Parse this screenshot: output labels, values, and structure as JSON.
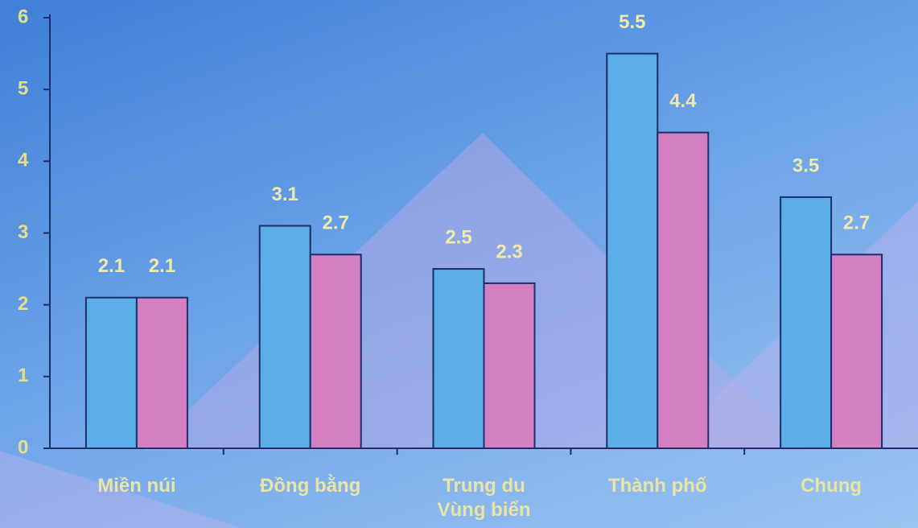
{
  "chart_data": {
    "type": "bar",
    "categories": [
      "Miền núi",
      "Đồng bằng",
      "Trung du\nVùng biển",
      "Thành phố",
      "Chung"
    ],
    "series": [
      {
        "color": "#5aade6",
        "values": [
          2.1,
          3.1,
          2.5,
          5.5,
          3.5
        ]
      },
      {
        "color": "#d37fc2",
        "values": [
          2.1,
          2.7,
          2.3,
          4.4,
          2.7
        ]
      }
    ],
    "ylim": [
      0,
      6
    ],
    "yticks": [
      0,
      1,
      2,
      3,
      4,
      5,
      6
    ],
    "grid": false
  }
}
